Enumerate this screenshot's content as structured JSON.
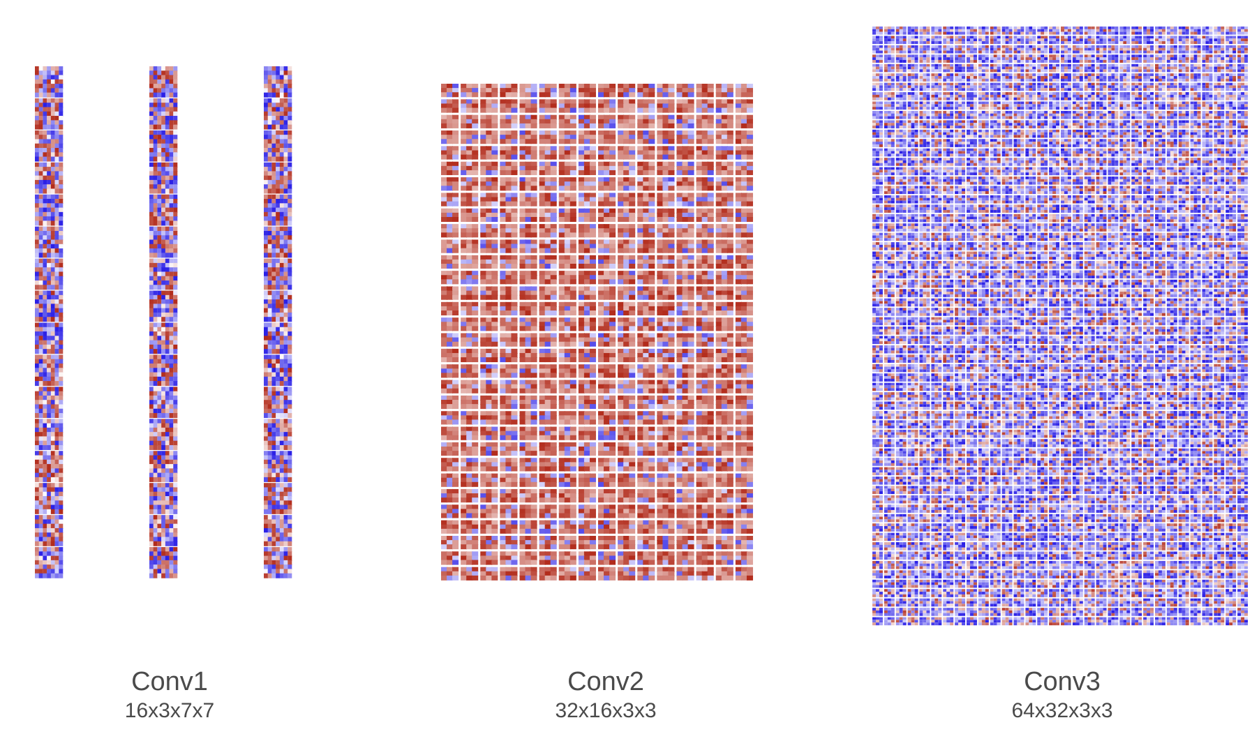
{
  "colors": {
    "positive": "#b22b1b",
    "negative": "#2a1fe6",
    "neutral": "#ffffff"
  },
  "panels": [
    {
      "name": "Conv1",
      "shape": "16x3x7x7",
      "kernel_columns": 3,
      "kernel_rows": 16,
      "kernel_size": 7,
      "tone": "mixed"
    },
    {
      "name": "Conv2",
      "shape": "32x16x3x3",
      "kernel_columns": 16,
      "kernel_rows": 32,
      "kernel_size": 3,
      "tone": "mostly-positive"
    },
    {
      "name": "Conv3",
      "shape": "64x32x3x3",
      "kernel_columns": 32,
      "kernel_rows": 64,
      "kernel_size": 3,
      "tone": "mostly-negative"
    }
  ]
}
